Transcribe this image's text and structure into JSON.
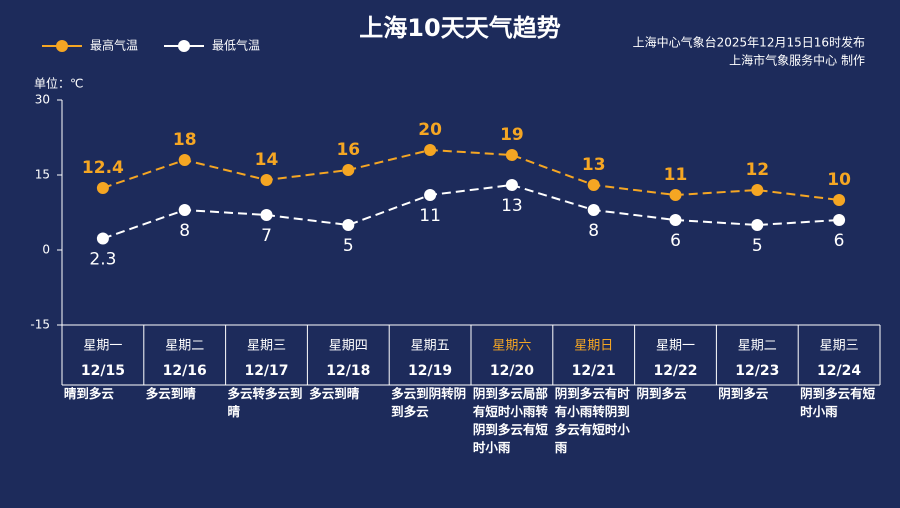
{
  "chart_data": {
    "type": "line",
    "title": "上海10天天气趋势",
    "annotations": [
      "上海中心气象台2025年12月15日16时发布",
      "上海市气象服务中心 制作"
    ],
    "y_label": "单位：℃",
    "categories": [
      "12/15",
      "12/16",
      "12/17",
      "12/18",
      "12/19",
      "12/20",
      "12/21",
      "12/22",
      "12/23",
      "12/24"
    ],
    "weekdays": [
      "星期一",
      "星期二",
      "星期三",
      "星期四",
      "星期五",
      "星期六",
      "星期日",
      "星期一",
      "星期二",
      "星期三"
    ],
    "weekday_colors": [
      "#ffffff",
      "#ffffff",
      "#ffffff",
      "#ffffff",
      "#ffffff",
      "#f5a623",
      "#f5a623",
      "#ffffff",
      "#ffffff",
      "#ffffff"
    ],
    "descriptions": [
      "晴到多云",
      "多云到晴",
      "多云转多云到晴",
      "多云到晴",
      "多云到阴转阴到多云",
      "阴到多云局部有短时小雨转阴到多云有短时小雨",
      "阴到多云有时有小雨转阴到多云有短时小雨",
      "阴到多云",
      "阴到多云",
      "阴到多云有短时小雨"
    ],
    "series": [
      {
        "name": "最高气温",
        "color": "#f5a623",
        "label_position": "above",
        "values": [
          12.4,
          18,
          14,
          16,
          20,
          19,
          13,
          11,
          12,
          10
        ]
      },
      {
        "name": "最低气温",
        "color": "#ffffff",
        "label_position": "below",
        "values": [
          2.3,
          8,
          7,
          5,
          11,
          13,
          8,
          6,
          5,
          6
        ]
      }
    ],
    "ylim": [
      -15,
      30
    ],
    "yticks": [
      -15,
      0,
      15,
      30
    ],
    "legend": "top-left",
    "background": "#1d2b5b"
  }
}
